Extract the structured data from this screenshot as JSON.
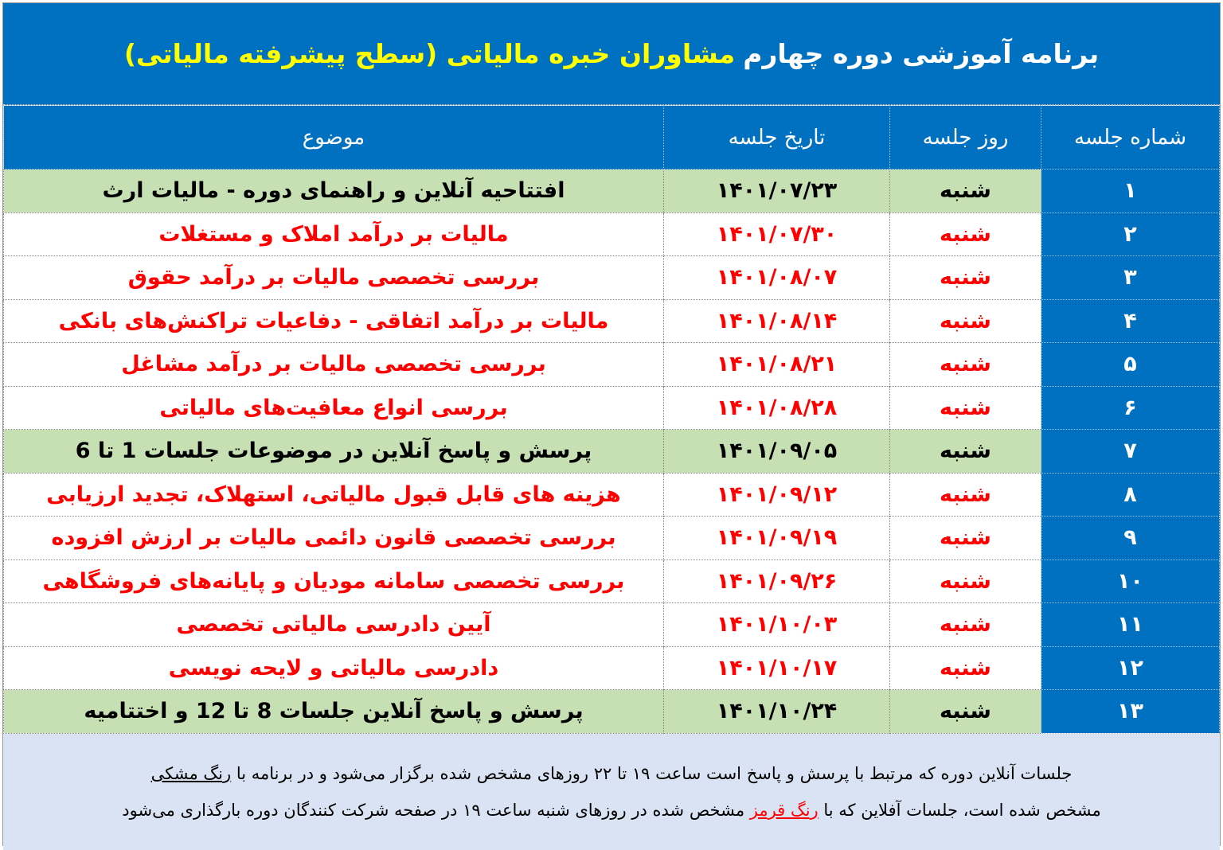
{
  "title": {
    "part1": "برنامه آموزشی دوره چهارم",
    "part2": "مشاوران خبره مالیاتی (سطح پیشرفته مالیاتی)"
  },
  "columns": [
    "شماره جلسه",
    "روز جلسه",
    "تاریخ جلسه",
    "موضوع"
  ],
  "colors": {
    "header_bg": "#0070c0",
    "online_row": "#c6e0b4",
    "offline_text": "#ff0000",
    "title_highlight": "#ffff00",
    "footer_bg": "#dae3f3"
  },
  "rows": [
    {
      "num": "۱",
      "day": "شنبه",
      "date": "۱۴۰۱/۰۷/۲۳",
      "topic": "افتتاحیه آنلاین و راهنمای دوره - مالیات ارث",
      "type": "online"
    },
    {
      "num": "۲",
      "day": "شنبه",
      "date": "۱۴۰۱/۰۷/۳۰",
      "topic": "مالیات بر درآمد املاک و مستغلات",
      "type": "offline"
    },
    {
      "num": "۳",
      "day": "شنبه",
      "date": "۱۴۰۱/۰۸/۰۷",
      "topic": "بررسی تخصصی مالیات بر درآمد حقوق",
      "type": "offline"
    },
    {
      "num": "۴",
      "day": "شنبه",
      "date": "۱۴۰۱/۰۸/۱۴",
      "topic": "مالیات بر درآمد اتفاقی - دفاعیات تراکنش‌های بانکی",
      "type": "offline"
    },
    {
      "num": "۵",
      "day": "شنبه",
      "date": "۱۴۰۱/۰۸/۲۱",
      "topic": "بررسی تخصصی مالیات بر درآمد مشاغل",
      "type": "offline"
    },
    {
      "num": "۶",
      "day": "شنبه",
      "date": "۱۴۰۱/۰۸/۲۸",
      "topic": "بررسی انواع معافیت‌های مالیاتی",
      "type": "offline"
    },
    {
      "num": "۷",
      "day": "شنبه",
      "date": "۱۴۰۱/۰۹/۰۵",
      "topic": "پرسش و پاسخ آنلاین در موضوعات جلسات 1 تا 6",
      "type": "online"
    },
    {
      "num": "۸",
      "day": "شنبه",
      "date": "۱۴۰۱/۰۹/۱۲",
      "topic": "هزینه های قابل قبول مالیاتی، استهلاک، تجدید ارزیابی",
      "type": "offline"
    },
    {
      "num": "۹",
      "day": "شنبه",
      "date": "۱۴۰۱/۰۹/۱۹",
      "topic": "بررسی تخصصی قانون دائمی مالیات بر ارزش افزوده",
      "type": "offline"
    },
    {
      "num": "۱۰",
      "day": "شنبه",
      "date": "۱۴۰۱/۰۹/۲۶",
      "topic": "بررسی تخصصی سامانه مودیان و پایانه‌های فروشگاهی",
      "type": "offline"
    },
    {
      "num": "۱۱",
      "day": "شنبه",
      "date": "۱۴۰۱/۱۰/۰۳",
      "topic": "آیین دادرسی مالیاتی تخصصی",
      "type": "offline"
    },
    {
      "num": "۱۲",
      "day": "شنبه",
      "date": "۱۴۰۱/۱۰/۱۷",
      "topic": "دادرسی مالیاتی و لایحه نویسی",
      "type": "offline"
    },
    {
      "num": "۱۳",
      "day": "شنبه",
      "date": "۱۴۰۱/۱۰/۲۴",
      "topic": "پرسش و پاسخ آنلاین جلسات 8 تا 12 و اختتامیه",
      "type": "online"
    }
  ],
  "footer": {
    "line1_text": "جلسات آنلاین دوره که مرتبط با پرسش و پاسخ است ساعت ۱۹ تا ۲۲ روزهای مشخص شده برگزار می‌شود و در برنامه با ",
    "line1_link": "رنگ مشکی",
    "line2_pre": "مشخص شده  است، جلسات آفلاین که با ",
    "line2_link": "رنگ قرمز",
    "line2_post": " مشخص شده در روزهای شنبه ساعت ۱۹ در صفحه شرکت کنندگان دوره بارگذاری می‌شود"
  }
}
